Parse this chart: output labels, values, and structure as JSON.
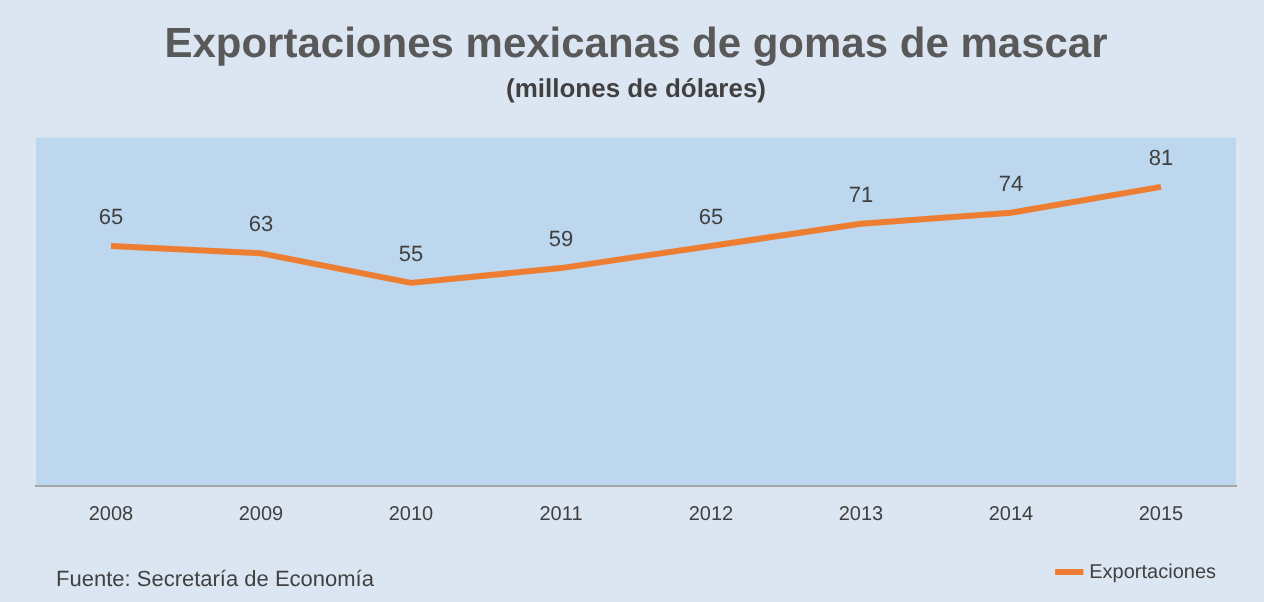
{
  "chart_data": {
    "type": "line",
    "title": "Exportaciones mexicanas de gomas de mascar",
    "subtitle": "(millones de dólares)",
    "categories": [
      "2008",
      "2009",
      "2010",
      "2011",
      "2012",
      "2013",
      "2014",
      "2015"
    ],
    "series": [
      {
        "name": "Exportaciones",
        "color": "#ed7d31",
        "values": [
          65,
          63,
          55,
          59,
          65,
          71,
          74,
          81
        ]
      }
    ],
    "data_labels": true,
    "legend": "bottom right",
    "marker": "none",
    "annotations": [
      "Fuente: Secretaría de Economía"
    ]
  }
}
